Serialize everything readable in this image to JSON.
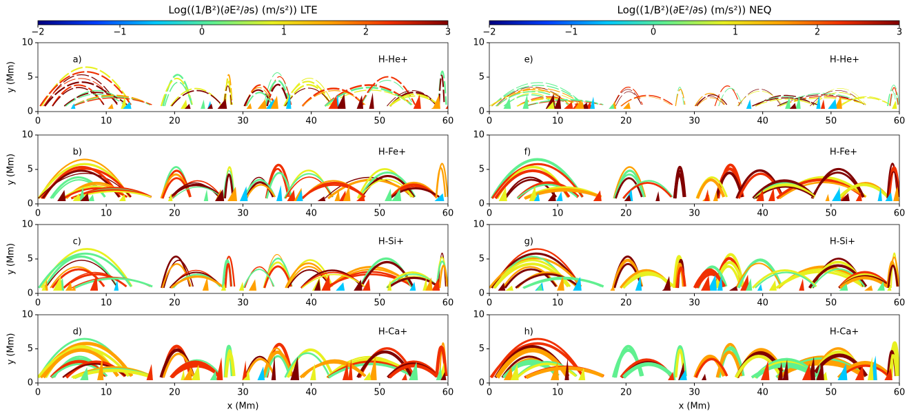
{
  "colorbars": [
    {
      "label": "Log((1/B²)(∂E²/∂s) (m/s²)) LTE",
      "lim": [
        -2,
        3
      ],
      "ticks": [
        {
          "value": -2,
          "label": "−2"
        },
        {
          "value": -1,
          "label": "−1"
        },
        0,
        1,
        2,
        3
      ],
      "colors": [
        "#00007f",
        "#0040ff",
        "#00c8ff",
        "#60f090",
        "#e8f020",
        "#ffa000",
        "#f03000",
        "#800000"
      ]
    },
    {
      "label": "Log((1/B²)(∂E²/∂s) (m/s²)) NEQ",
      "lim": [
        -2,
        3
      ],
      "ticks": [
        {
          "value": -2,
          "label": "−2"
        },
        {
          "value": -1,
          "label": "−1"
        },
        0,
        1,
        2,
        3
      ],
      "colors": [
        "#00007f",
        "#0040ff",
        "#00c8ff",
        "#60f090",
        "#e8f020",
        "#ffa000",
        "#f03000",
        "#800000"
      ]
    }
  ],
  "chart_data": [
    {
      "type": "heatmap",
      "panel_label": "a)",
      "annotation": "H-He+",
      "ylabel": "y (Mm)",
      "xlim": [
        0,
        60
      ],
      "xticks": [
        0,
        10,
        20,
        30,
        40,
        50,
        60
      ],
      "ylim": [
        0,
        10
      ],
      "yticks": [
        0,
        5,
        10
      ]
    },
    {
      "type": "heatmap",
      "panel_label": "b)",
      "annotation": "H-Fe+",
      "ylabel": "y (Mm)",
      "xlim": [
        0,
        60
      ],
      "xticks": [
        0,
        10,
        20,
        30,
        40,
        50,
        60
      ],
      "ylim": [
        0,
        10
      ],
      "yticks": [
        0,
        5,
        10
      ]
    },
    {
      "type": "heatmap",
      "panel_label": "c)",
      "annotation": "H-Si+",
      "ylabel": "y (Mm)",
      "xlim": [
        0,
        60
      ],
      "xticks": [
        0,
        10,
        20,
        30,
        40,
        50,
        60
      ],
      "ylim": [
        0,
        10
      ],
      "yticks": [
        0,
        5,
        10
      ]
    },
    {
      "type": "heatmap",
      "panel_label": "d)",
      "annotation": "H-Ca+",
      "ylabel": "y (Mm)",
      "xlabel": "x (Mm)",
      "xlim": [
        0,
        60
      ],
      "xticks": [
        0,
        10,
        20,
        30,
        40,
        50,
        60
      ],
      "ylim": [
        0,
        10
      ],
      "yticks": [
        0,
        5,
        10
      ]
    },
    {
      "type": "heatmap",
      "panel_label": "e)",
      "annotation": "H-He+",
      "xlim": [
        0,
        60
      ],
      "xticks": [
        0,
        10,
        20,
        30,
        40,
        50,
        60
      ],
      "ylim": [
        0,
        10
      ],
      "yticks": [
        0,
        5,
        10
      ]
    },
    {
      "type": "heatmap",
      "panel_label": "f)",
      "annotation": "H-Fe+",
      "xlim": [
        0,
        60
      ],
      "xticks": [
        0,
        10,
        20,
        30,
        40,
        50,
        60
      ],
      "ylim": [
        0,
        10
      ],
      "yticks": [
        0,
        5,
        10
      ]
    },
    {
      "type": "heatmap",
      "panel_label": "g)",
      "annotation": "H-Si+",
      "xlim": [
        0,
        60
      ],
      "xticks": [
        0,
        10,
        20,
        30,
        40,
        50,
        60
      ],
      "ylim": [
        0,
        10
      ],
      "yticks": [
        0,
        5,
        10
      ]
    },
    {
      "type": "heatmap",
      "panel_label": "h)",
      "annotation": "H-Ca+",
      "xlabel": "x (Mm)",
      "xlim": [
        0,
        60
      ],
      "xticks": [
        0,
        10,
        20,
        30,
        40,
        50,
        60
      ],
      "ylim": [
        0,
        10
      ],
      "yticks": [
        0,
        5,
        10
      ]
    }
  ]
}
